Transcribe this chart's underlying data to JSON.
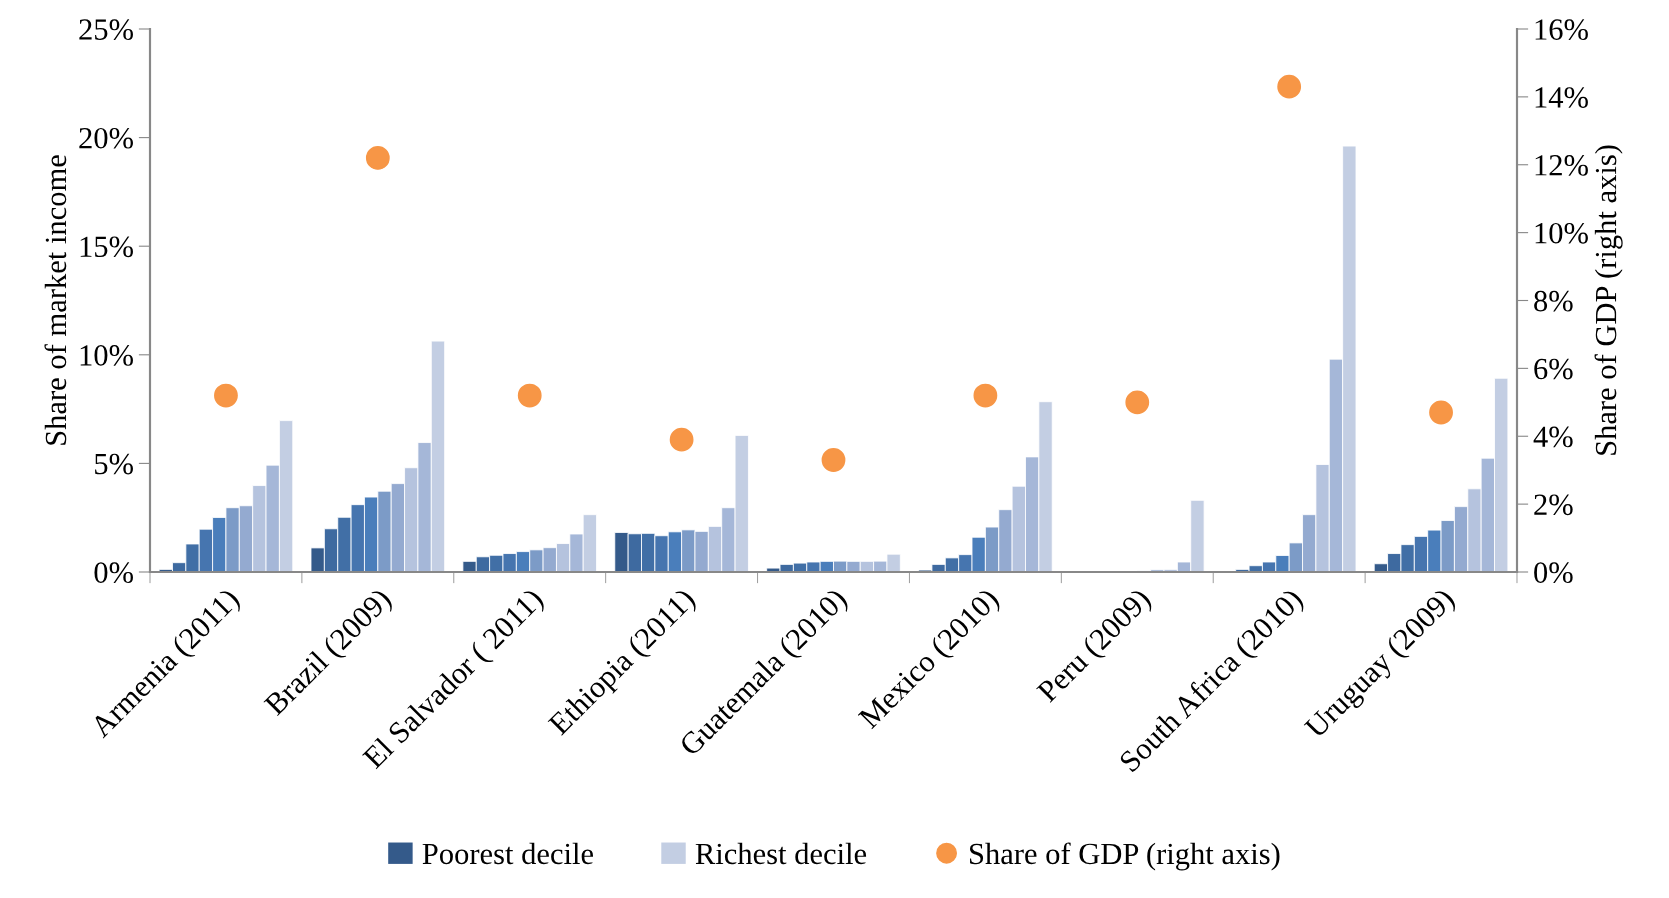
{
  "chart_data": {
    "type": "bar",
    "ylabel": "Share of market income",
    "y2label": "Share of GDP (right axis)",
    "categories": [
      "Armenia (2011)",
      "Brazil (2009)",
      "El Salvador ( 2011)",
      "Ethiopia (2011)",
      "Guatemala (2010)",
      "Mexico (2010)",
      "Peru (2009)",
      "South Africa (2010)",
      "Uruguay (2009)"
    ],
    "series": [
      {
        "name": "Poorest decile",
        "color": "#345a8a",
        "values": [
          0.12,
          1.11,
          0.49,
          1.82,
          0.18,
          0.09,
          null,
          null,
          0.38
        ]
      },
      {
        "color": "#3e6aa0",
        "values": [
          0.43,
          1.99,
          0.7,
          1.76,
          0.35,
          0.35,
          null,
          0.12,
          0.85
        ]
      },
      {
        "color": "#416fa6",
        "values": [
          1.29,
          2.52,
          0.77,
          1.78,
          0.41,
          0.65,
          null,
          0.29,
          1.26
        ]
      },
      {
        "color": "#4675af",
        "values": [
          1.97,
          3.1,
          0.85,
          1.67,
          0.46,
          0.8,
          null,
          0.46,
          1.64
        ]
      },
      {
        "color": "#4a7ebb",
        "values": [
          2.51,
          3.45,
          0.94,
          1.85,
          0.49,
          1.6,
          null,
          0.76,
          1.93
        ]
      },
      {
        "color": "#7c9bc7",
        "values": [
          2.96,
          3.72,
          1.02,
          1.94,
          0.5,
          2.07,
          0.05,
          1.34,
          2.37
        ]
      },
      {
        "color": "#94aad0",
        "values": [
          3.05,
          4.07,
          1.12,
          1.87,
          0.49,
          2.87,
          0.1,
          2.64,
          3.01
        ]
      },
      {
        "color": "#b5c3de",
        "values": [
          3.98,
          4.8,
          1.31,
          2.1,
          0.49,
          3.95,
          0.12,
          4.95,
          3.83
        ]
      },
      {
        "color": "#a5b7d8",
        "values": [
          4.92,
          5.96,
          1.75,
          2.96,
          0.5,
          5.3,
          0.46,
          9.8,
          5.24
        ]
      },
      {
        "name": "Richest decile",
        "color": "#c3cee3",
        "values": [
          6.97,
          10.63,
          2.64,
          6.29,
          0.82,
          7.84,
          3.3,
          19.61,
          8.92
        ]
      },
      {
        "name": "Share of GDP (right axis)",
        "type": "scatter",
        "axis": "y2",
        "marker": "circle",
        "color": "#f79646",
        "values": [
          5.2,
          12.2,
          5.2,
          3.9,
          3.3,
          5.2,
          5.0,
          14.3,
          4.7
        ]
      }
    ],
    "ylim": [
      0,
      25
    ],
    "yticks": [
      {
        "value": 0,
        "label": "0%"
      },
      {
        "value": 5,
        "label": "5%"
      },
      {
        "value": 10,
        "label": "10%"
      },
      {
        "value": 15,
        "label": "15%"
      },
      {
        "value": 20,
        "label": "20%"
      },
      {
        "value": 25,
        "label": "25%"
      }
    ],
    "y2lim": [
      0,
      16
    ],
    "y2ticks": [
      {
        "value": 0,
        "label": "0%"
      },
      {
        "value": 2,
        "label": "2%"
      },
      {
        "value": 4,
        "label": "4%"
      },
      {
        "value": 6,
        "label": "6%"
      },
      {
        "value": 8,
        "label": "8%"
      },
      {
        "value": 10,
        "label": "10%"
      },
      {
        "value": 12,
        "label": "12%"
      },
      {
        "value": 14,
        "label": "14%"
      },
      {
        "value": 16,
        "label": "16%"
      }
    ],
    "grid": false,
    "legend": "bottom"
  }
}
